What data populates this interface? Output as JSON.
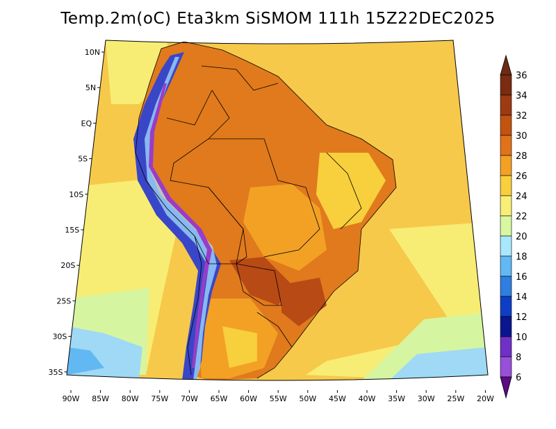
{
  "title": "Temp.2m(oC) Eta3km SiSMOM 111h 15Z22DEC2025",
  "map": {
    "lat_labels": [
      "10N",
      "5N",
      "EQ",
      "5S",
      "10S",
      "15S",
      "20S",
      "25S",
      "30S",
      "35S"
    ],
    "lon_labels": [
      "90W",
      "85W",
      "80W",
      "75W",
      "70W",
      "65W",
      "60W",
      "55W",
      "50W",
      "45W",
      "40W",
      "35W",
      "30W",
      "25W",
      "20W"
    ]
  },
  "colorbar": {
    "labels": [
      "36",
      "34",
      "32",
      "30",
      "28",
      "26",
      "24",
      "22",
      "20",
      "18",
      "16",
      "14",
      "12",
      "10",
      "8",
      "6"
    ],
    "colors": [
      "#7a2b12",
      "#9c3b12",
      "#c2540f",
      "#e0731a",
      "#f2a125",
      "#f8cf3c",
      "#f8ef76",
      "#d8f7a0",
      "#a8e8ff",
      "#62b8f2",
      "#2f7ee0",
      "#0f3ec6",
      "#0a1690",
      "#7030c8",
      "#9850d8",
      "#6a1290"
    ],
    "top_color": "#6e2a14",
    "bottom_color": "#5a0c84"
  },
  "colors": {
    "ocean_warm": "#f6c94a",
    "ocean_mid": "#f8ed74",
    "ocean_cool": "#d6f5a0",
    "ocean_cold": "#9fd9f5",
    "land_hot": "#e07a1c",
    "land_warm": "#f2a125",
    "land_very_hot": "#b84a16",
    "andes_cold": "#3a46c8",
    "andes_peak": "#9a3cc8"
  }
}
